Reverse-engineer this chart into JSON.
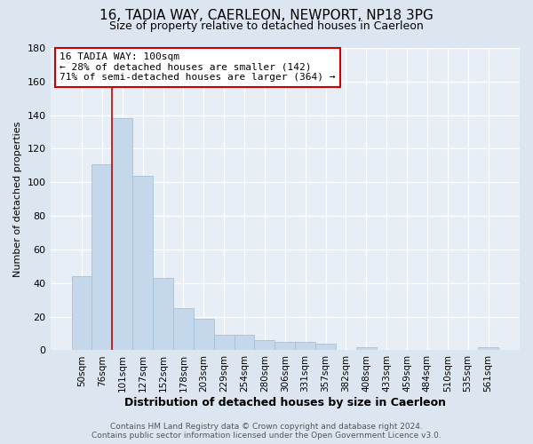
{
  "title": "16, TADIA WAY, CAERLEON, NEWPORT, NP18 3PG",
  "subtitle": "Size of property relative to detached houses in Caerleon",
  "xlabel": "Distribution of detached houses by size in Caerleon",
  "ylabel": "Number of detached properties",
  "bar_labels": [
    "50sqm",
    "76sqm",
    "101sqm",
    "127sqm",
    "152sqm",
    "178sqm",
    "203sqm",
    "229sqm",
    "254sqm",
    "280sqm",
    "306sqm",
    "331sqm",
    "357sqm",
    "382sqm",
    "408sqm",
    "433sqm",
    "459sqm",
    "484sqm",
    "510sqm",
    "535sqm",
    "561sqm"
  ],
  "bar_values": [
    44,
    111,
    138,
    104,
    43,
    25,
    19,
    9,
    9,
    6,
    5,
    5,
    4,
    0,
    2,
    0,
    0,
    0,
    0,
    0,
    2
  ],
  "bar_color": "#c5d8eb",
  "bar_edgecolor": "#9bbcd4",
  "vline_color": "#cc0000",
  "ylim": [
    0,
    180
  ],
  "yticks": [
    0,
    20,
    40,
    60,
    80,
    100,
    120,
    140,
    160,
    180
  ],
  "annotation_text": "16 TADIA WAY: 100sqm\n← 28% of detached houses are smaller (142)\n71% of semi-detached houses are larger (364) →",
  "annotation_box_color": "#ffffff",
  "annotation_box_edgecolor": "#cc0000",
  "footer_line1": "Contains HM Land Registry data © Crown copyright and database right 2024.",
  "footer_line2": "Contains public sector information licensed under the Open Government Licence v3.0.",
  "fig_bg_color": "#dce6f0",
  "plot_bg_color": "#e8eef5",
  "grid_color": "#ffffff",
  "title_fontsize": 11,
  "subtitle_fontsize": 9
}
